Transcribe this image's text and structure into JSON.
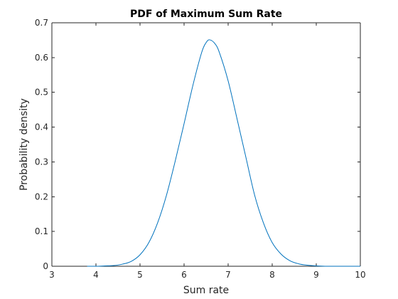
{
  "chart_data": {
    "type": "line",
    "title": "PDF of Maximum Sum Rate",
    "xlabel": "Sum rate",
    "ylabel": "Probability density",
    "xlim": [
      3,
      10
    ],
    "ylim": [
      0,
      0.7
    ],
    "xticks": [
      3,
      4,
      5,
      6,
      7,
      8,
      9,
      10
    ],
    "yticks": [
      0,
      0.1,
      0.2,
      0.3,
      0.4,
      0.5,
      0.6,
      0.7
    ],
    "xtick_labels": [
      "3",
      "4",
      "5",
      "6",
      "7",
      "8",
      "9",
      "10"
    ],
    "ytick_labels": [
      "0",
      "0.1",
      "0.2",
      "0.3",
      "0.4",
      "0.5",
      "0.6",
      "0.7"
    ],
    "grid": false,
    "line_color": "#0072BD",
    "series": [
      {
        "x": [
          3.8,
          4.0,
          4.2,
          4.4,
          4.6,
          4.8,
          5.0,
          5.2,
          5.4,
          5.6,
          5.8,
          6.0,
          6.2,
          6.4,
          6.5,
          6.58,
          6.7,
          6.8,
          7.0,
          7.2,
          7.4,
          7.6,
          7.8,
          8.0,
          8.2,
          8.4,
          8.6,
          8.8,
          9.0,
          9.2,
          9.4,
          10.0
        ],
        "y": [
          0.0,
          0.0,
          0.001,
          0.002,
          0.006,
          0.014,
          0.033,
          0.068,
          0.125,
          0.204,
          0.303,
          0.41,
          0.52,
          0.615,
          0.643,
          0.651,
          0.64,
          0.615,
          0.533,
          0.425,
          0.315,
          0.205,
          0.125,
          0.068,
          0.035,
          0.016,
          0.007,
          0.003,
          0.001,
          0.0,
          0.0,
          0.0
        ]
      }
    ]
  }
}
